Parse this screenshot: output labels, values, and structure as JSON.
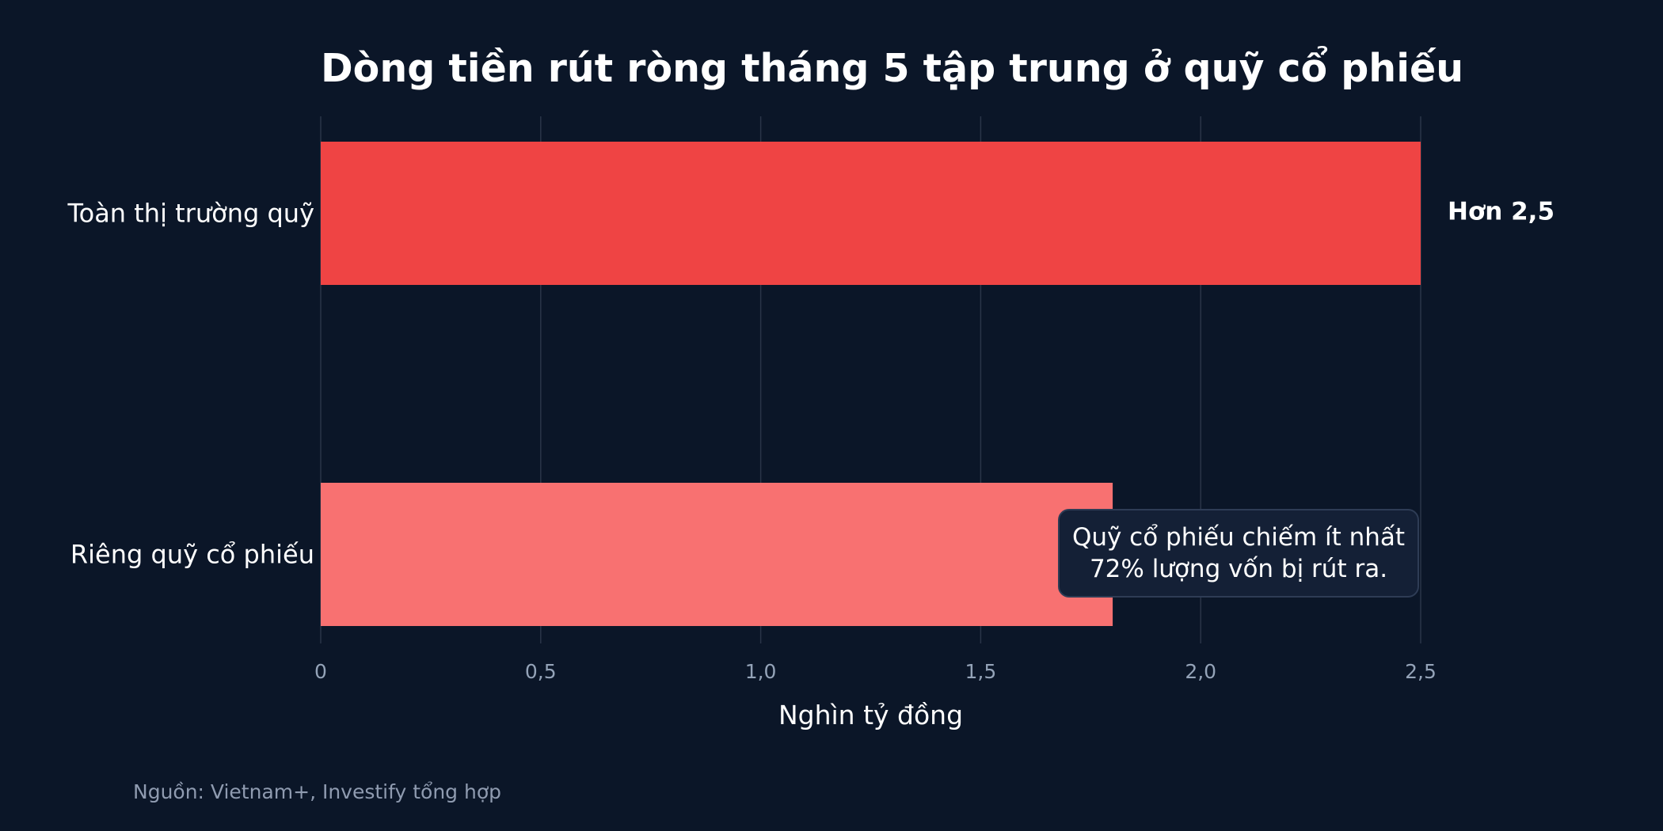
{
  "chart_data": {
    "type": "bar",
    "orientation": "horizontal",
    "title": "Dòng tiền rút ròng tháng 5 tập trung ở quỹ cổ phiếu",
    "xlabel": "Nghìn tỷ đồng",
    "ylabel": "",
    "xlim": [
      0,
      2.5
    ],
    "xticks": [
      "0",
      "0,5",
      "1,0",
      "1,5",
      "2,0",
      "2,5"
    ],
    "grid": true,
    "categories": [
      "Toàn thị trường quỹ",
      "Riêng quỹ cổ phiếu"
    ],
    "values": [
      2.5,
      1.8
    ],
    "colors": [
      "#ef4444",
      "#f87171"
    ],
    "data_labels": [
      "Hơn 2,5",
      ""
    ],
    "annotation": {
      "line1": "Quỹ cổ phiếu chiếm ít nhất",
      "line2": "72% lượng vốn bị rút ra."
    },
    "source": "Nguồn: Vietnam+, Investify tổng hợp"
  },
  "theme": {
    "background": "#0b1628",
    "grid": "#2a3548",
    "tick_text": "#94a3b8",
    "text": "#ffffff"
  }
}
